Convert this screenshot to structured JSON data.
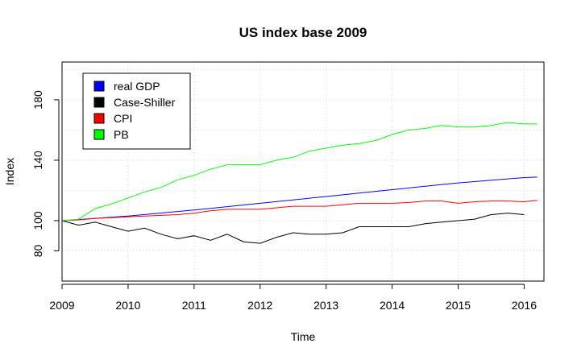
{
  "chart_data": {
    "type": "line",
    "title": "US index base 2009",
    "xlabel": "Time",
    "ylabel": "Index",
    "xlim": [
      2009,
      2016.3
    ],
    "ylim": [
      60,
      205
    ],
    "xticks": [
      2009,
      2010,
      2011,
      2012,
      2013,
      2014,
      2015,
      2016
    ],
    "yticks": [
      80,
      100,
      140,
      180
    ],
    "grid": true,
    "grid_lines_y": [
      80,
      100,
      120,
      140,
      160,
      180,
      200
    ],
    "legend_position": "top-left",
    "series": [
      {
        "name": "real GDP",
        "color": "#0000ff",
        "x": [
          2009.0,
          2010.0,
          2011.0,
          2012.0,
          2013.0,
          2014.0,
          2015.0,
          2016.0,
          2016.2
        ],
        "y": [
          100,
          103,
          107,
          111.5,
          116,
          120.5,
          125,
          128.5,
          128.8
        ]
      },
      {
        "name": "Case-Shiller",
        "color": "#000000",
        "x": [
          2009.0,
          2009.25,
          2009.5,
          2009.75,
          2010.0,
          2010.25,
          2010.5,
          2010.75,
          2011.0,
          2011.25,
          2011.5,
          2011.75,
          2012.0,
          2012.25,
          2012.5,
          2012.75,
          2013.0,
          2013.25,
          2013.5,
          2013.75,
          2014.0,
          2014.25,
          2014.5,
          2014.75,
          2015.0,
          2015.25,
          2015.5,
          2015.75,
          2016.0
        ],
        "y": [
          100,
          97,
          99,
          96,
          93,
          95,
          91,
          88,
          90,
          87,
          91,
          86,
          85,
          89,
          92,
          91,
          91,
          92,
          96,
          96,
          96,
          96,
          98,
          99,
          100,
          101,
          104,
          105,
          104
        ]
      },
      {
        "name": "CPI",
        "color": "#ff0000",
        "x": [
          2009.0,
          2009.25,
          2009.5,
          2009.75,
          2010.0,
          2010.25,
          2010.5,
          2010.75,
          2011.0,
          2011.25,
          2011.5,
          2011.75,
          2012.0,
          2012.25,
          2012.5,
          2012.75,
          2013.0,
          2013.25,
          2013.5,
          2013.75,
          2014.0,
          2014.25,
          2014.5,
          2014.75,
          2015.0,
          2015.25,
          2015.5,
          2015.75,
          2016.0,
          2016.2
        ],
        "y": [
          100,
          100.5,
          101.5,
          102,
          102.5,
          103,
          103.5,
          104,
          105,
          106.5,
          107.5,
          107.5,
          107.5,
          108.5,
          109.5,
          109.5,
          109.5,
          110.5,
          111.5,
          111.5,
          111.5,
          112,
          113,
          113,
          111.5,
          112.5,
          113,
          113,
          112.5,
          113.5
        ]
      },
      {
        "name": "PB",
        "color": "#00ff00",
        "x": [
          2009.0,
          2009.25,
          2009.5,
          2009.75,
          2010.0,
          2010.25,
          2010.5,
          2010.75,
          2011.0,
          2011.25,
          2011.5,
          2011.75,
          2012.0,
          2012.25,
          2012.5,
          2012.75,
          2013.0,
          2013.25,
          2013.5,
          2013.75,
          2014.0,
          2014.25,
          2014.5,
          2014.75,
          2015.0,
          2015.25,
          2015.5,
          2015.75,
          2016.0,
          2016.2
        ],
        "y": [
          100,
          101,
          108,
          111,
          115,
          119,
          122,
          127,
          130,
          134,
          137,
          137,
          137,
          140,
          142,
          146,
          148,
          150,
          151,
          153,
          157,
          160,
          161,
          163,
          162,
          162,
          163,
          165,
          164,
          164
        ]
      }
    ]
  }
}
